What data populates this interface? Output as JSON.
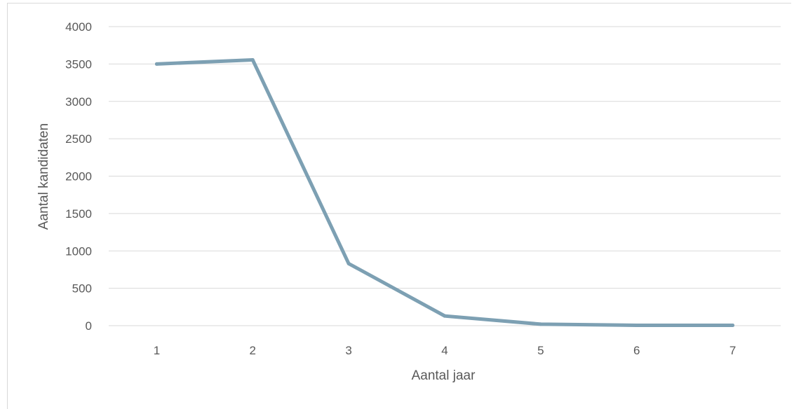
{
  "chart_data": {
    "type": "line",
    "title": "",
    "xlabel": "Aantal jaar",
    "ylabel": "Aantal kandidaten",
    "categories": [
      "1",
      "2",
      "3",
      "4",
      "5",
      "6",
      "7"
    ],
    "series": [
      {
        "values": [
          3500,
          3555,
          830,
          130,
          20,
          5,
          5
        ],
        "color": "#7da0b3"
      }
    ],
    "ylim": [
      0,
      4000
    ],
    "yticks": [
      "0",
      "500",
      "1000",
      "1500",
      "2000",
      "2500",
      "3000",
      "3500",
      "4000"
    ],
    "grid": true,
    "legend": "none"
  }
}
